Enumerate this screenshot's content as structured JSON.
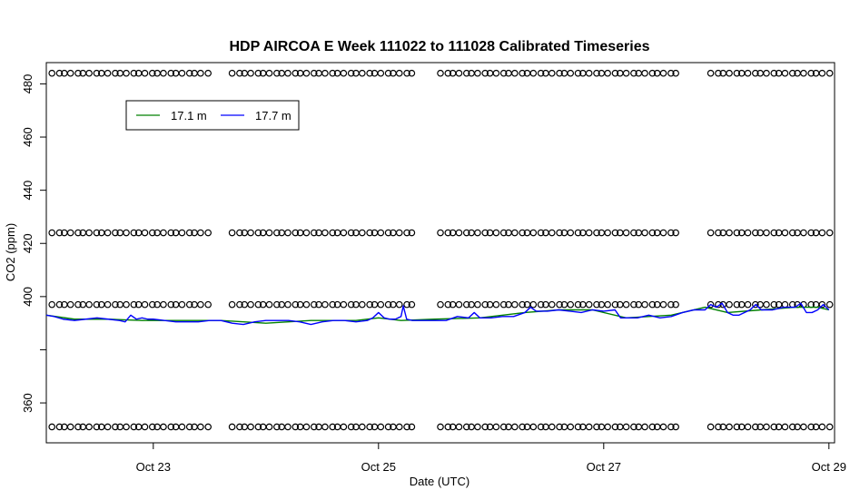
{
  "chart_data": {
    "type": "scatter",
    "title": "HDP AIRCOA E  Week 111022 to 111028  Calibrated Timeseries",
    "xlabel": "Date (UTC)",
    "ylabel": "CO2 (ppm)",
    "xlim_days": [
      22.05,
      29.05
    ],
    "ylim": [
      345,
      488
    ],
    "x_ticks": [
      {
        "label": "Oct 23",
        "day": 23
      },
      {
        "label": "Oct 25",
        "day": 25
      },
      {
        "label": "Oct 27",
        "day": 27
      },
      {
        "label": "Oct 29",
        "day": 29
      }
    ],
    "y_ticks": [
      360,
      380,
      400,
      420,
      440,
      460,
      480
    ],
    "y_tick_labels": [
      "360",
      "",
      "400",
      "420",
      "440",
      "460",
      "480"
    ],
    "grid": false,
    "legend": {
      "placement": "top-left",
      "entries": [
        {
          "label": "17.1 m",
          "color": "#008000"
        },
        {
          "label": "17.7 m",
          "color": "#0000ff"
        }
      ]
    },
    "calibration_points": {
      "color": "#000000",
      "levels": [
        484,
        424,
        397,
        351
      ],
      "segments": [
        {
          "start": 22.1,
          "end": 23.5
        },
        {
          "start": 23.7,
          "end": 25.3
        },
        {
          "start": 25.55,
          "end": 27.65
        },
        {
          "start": 27.95,
          "end": 29.0
        }
      ],
      "spacing_days": 0.055
    },
    "series": [
      {
        "name": "17.1 m",
        "color": "#008000",
        "x": [
          22.05,
          22.3,
          22.6,
          22.9,
          23.2,
          23.6,
          24.0,
          24.4,
          24.8,
          25.0,
          25.2,
          25.5,
          25.9,
          26.3,
          26.6,
          26.9,
          27.2,
          27.6,
          27.9,
          28.1,
          28.4,
          28.7,
          28.9,
          29.0
        ],
        "values": [
          393,
          391.5,
          391.5,
          391,
          391,
          391,
          390,
          391,
          391,
          392,
          391,
          391.5,
          392,
          394,
          395,
          395,
          392,
          393,
          396,
          394,
          395,
          396,
          396,
          395
        ]
      },
      {
        "name": "17.7 m",
        "color": "#0000ff",
        "x": [
          22.05,
          22.12,
          22.2,
          22.3,
          22.4,
          22.5,
          22.6,
          22.7,
          22.75,
          22.8,
          22.85,
          22.9,
          22.95,
          23.0,
          23.1,
          23.2,
          23.3,
          23.4,
          23.5,
          23.6,
          23.7,
          23.8,
          23.9,
          24.0,
          24.1,
          24.2,
          24.3,
          24.4,
          24.5,
          24.6,
          24.7,
          24.8,
          24.9,
          24.95,
          25.0,
          25.05,
          25.1,
          25.15,
          25.2,
          25.22,
          25.25,
          25.3,
          25.4,
          25.5,
          25.6,
          25.7,
          25.8,
          25.85,
          25.9,
          26.0,
          26.1,
          26.2,
          26.3,
          26.35,
          26.4,
          26.5,
          26.6,
          26.7,
          26.8,
          26.9,
          27.0,
          27.1,
          27.15,
          27.2,
          27.3,
          27.4,
          27.5,
          27.6,
          27.7,
          27.8,
          27.9,
          27.95,
          28.0,
          28.05,
          28.1,
          28.15,
          28.2,
          28.3,
          28.35,
          28.4,
          28.5,
          28.6,
          28.7,
          28.75,
          28.8,
          28.85,
          28.9,
          28.95,
          29.0
        ],
        "values": [
          393,
          392.5,
          391.5,
          391,
          391.5,
          392,
          391.5,
          391,
          390.5,
          393,
          391.5,
          392,
          391.5,
          391.5,
          391,
          390.5,
          390.5,
          390.5,
          391,
          391,
          390,
          389.5,
          390.5,
          391,
          391,
          391,
          390.5,
          389.5,
          390.5,
          391,
          391,
          390.5,
          391,
          392,
          394,
          392,
          391.5,
          391.5,
          392.5,
          396.5,
          391.5,
          391,
          391,
          391,
          391,
          392.5,
          392,
          394,
          392,
          392,
          392.5,
          392.5,
          394,
          396,
          394.5,
          394.5,
          395,
          394.5,
          394,
          395,
          394.5,
          395,
          392,
          392,
          392,
          393,
          392,
          392.5,
          394,
          395,
          395,
          397,
          396,
          397.5,
          394,
          393,
          393,
          395,
          397,
          395,
          395,
          396,
          396,
          397.5,
          394,
          394,
          395,
          397,
          395
        ]
      }
    ]
  }
}
